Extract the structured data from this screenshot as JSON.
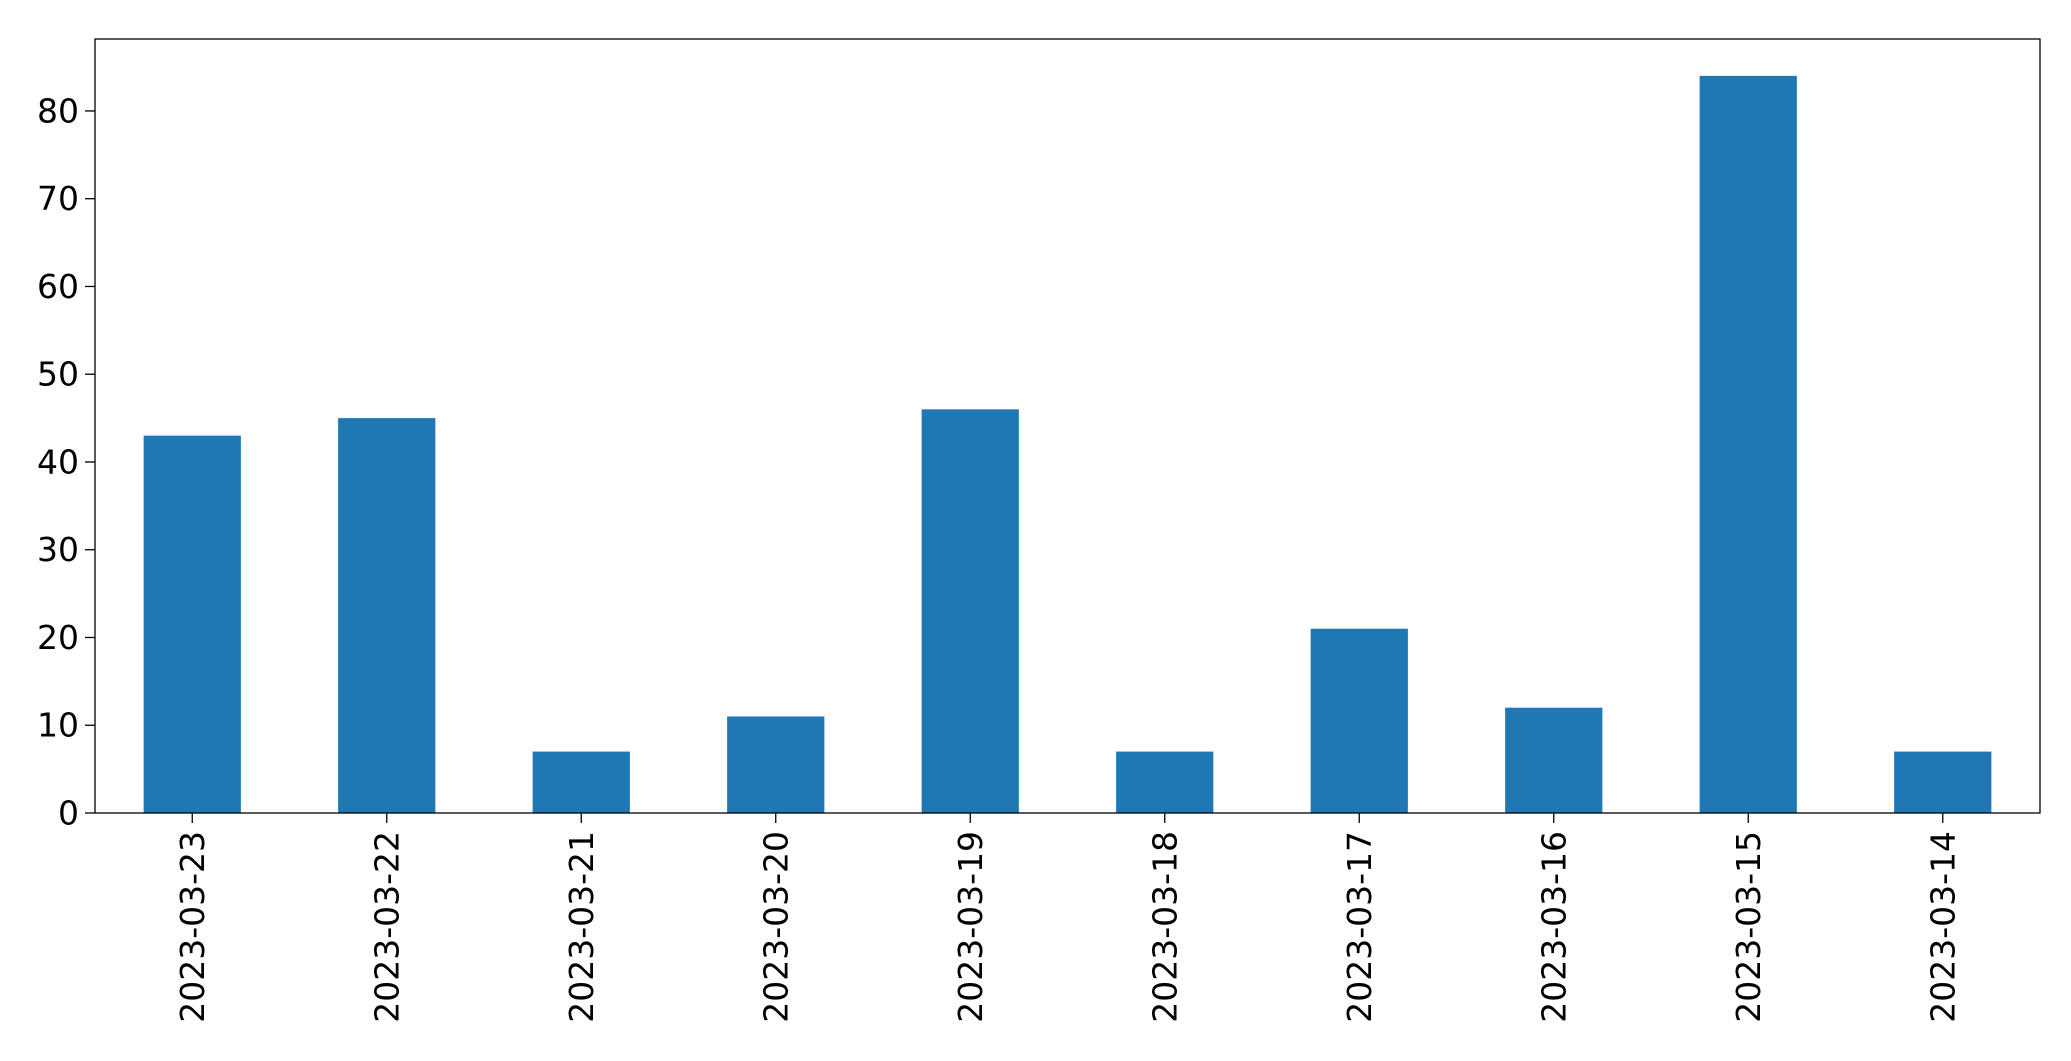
{
  "chart_data": {
    "type": "bar",
    "title": "",
    "xlabel": "",
    "ylabel": "",
    "categories": [
      "2023-03-23",
      "2023-03-22",
      "2023-03-21",
      "2023-03-20",
      "2023-03-19",
      "2023-03-18",
      "2023-03-17",
      "2023-03-16",
      "2023-03-15",
      "2023-03-14"
    ],
    "values": [
      43,
      45,
      7,
      11,
      46,
      7,
      21,
      12,
      84,
      7
    ],
    "ylim": [
      0,
      88.2
    ],
    "yticks": [
      0,
      10,
      20,
      30,
      40,
      50,
      60,
      70,
      80
    ],
    "grid": false,
    "legend": "none",
    "bar_color": "#1f77b4",
    "x_tick_rotation": "vertical"
  }
}
